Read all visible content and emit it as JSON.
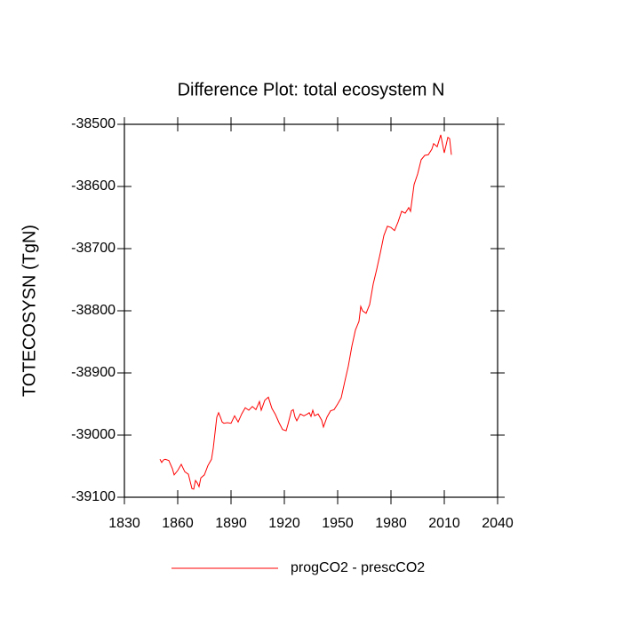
{
  "chart_data": {
    "type": "line",
    "title": "Difference Plot: total ecosystem N",
    "y_label": "TOTECOSYSN  (TgN)",
    "xlim": [
      1830,
      2040
    ],
    "xticks": [
      1830,
      1860,
      1890,
      1920,
      1950,
      1980,
      2010,
      2040
    ],
    "ylim": [
      -39100,
      -38500
    ],
    "yticks": [
      -39100,
      -39000,
      -38900,
      -38800,
      -38700,
      -38600,
      -38500
    ],
    "legend": "bottom",
    "series": [
      {
        "name": "progCO2 - prescCO2",
        "color": "#ff0000",
        "x": [
          1850,
          1851,
          1852,
          1853,
          1855,
          1857,
          1858,
          1860,
          1862,
          1864,
          1866,
          1868,
          1869,
          1870,
          1871,
          1872,
          1873,
          1875,
          1877,
          1879,
          1880,
          1881,
          1882,
          1883,
          1884,
          1885,
          1886,
          1888,
          1890,
          1892,
          1894,
          1896,
          1898,
          1900,
          1902,
          1904,
          1906,
          1907,
          1909,
          1911,
          1913,
          1915,
          1917,
          1919,
          1921,
          1922,
          1924,
          1925,
          1926,
          1927,
          1929,
          1931,
          1933,
          1934,
          1935,
          1936,
          1937,
          1939,
          1941,
          1942,
          1944,
          1946,
          1948,
          1950,
          1952,
          1954,
          1956,
          1958,
          1960,
          1962,
          1963,
          1964,
          1966,
          1968,
          1970,
          1972,
          1974,
          1976,
          1978,
          1980,
          1982,
          1984,
          1986,
          1988,
          1990,
          1991,
          1993,
          1995,
          1997,
          1999,
          2001,
          2003,
          2004,
          2006,
          2008,
          2010,
          2012,
          2013,
          2014
        ],
        "values": [
          -39039,
          -39044,
          -39040,
          -39039,
          -39041,
          -39054,
          -39064,
          -39057,
          -39047,
          -39059,
          -39063,
          -39086,
          -39087,
          -39073,
          -39077,
          -39083,
          -39069,
          -39064,
          -39049,
          -39039,
          -39021,
          -38996,
          -38971,
          -38964,
          -38971,
          -38979,
          -38981,
          -38980,
          -38981,
          -38969,
          -38979,
          -38966,
          -38956,
          -38960,
          -38954,
          -38959,
          -38946,
          -38960,
          -38944,
          -38939,
          -38957,
          -38967,
          -38980,
          -38991,
          -38993,
          -38983,
          -38961,
          -38959,
          -38971,
          -38977,
          -38966,
          -38969,
          -38966,
          -38964,
          -38970,
          -38960,
          -38969,
          -38966,
          -38976,
          -38987,
          -38971,
          -38961,
          -38959,
          -38950,
          -38940,
          -38914,
          -38889,
          -38857,
          -38831,
          -38817,
          -38793,
          -38800,
          -38804,
          -38790,
          -38757,
          -38733,
          -38707,
          -38679,
          -38664,
          -38666,
          -38671,
          -38657,
          -38640,
          -38643,
          -38634,
          -38640,
          -38597,
          -38580,
          -38557,
          -38550,
          -38549,
          -38540,
          -38531,
          -38536,
          -38517,
          -38546,
          -38521,
          -38523,
          -38549
        ]
      }
    ]
  }
}
